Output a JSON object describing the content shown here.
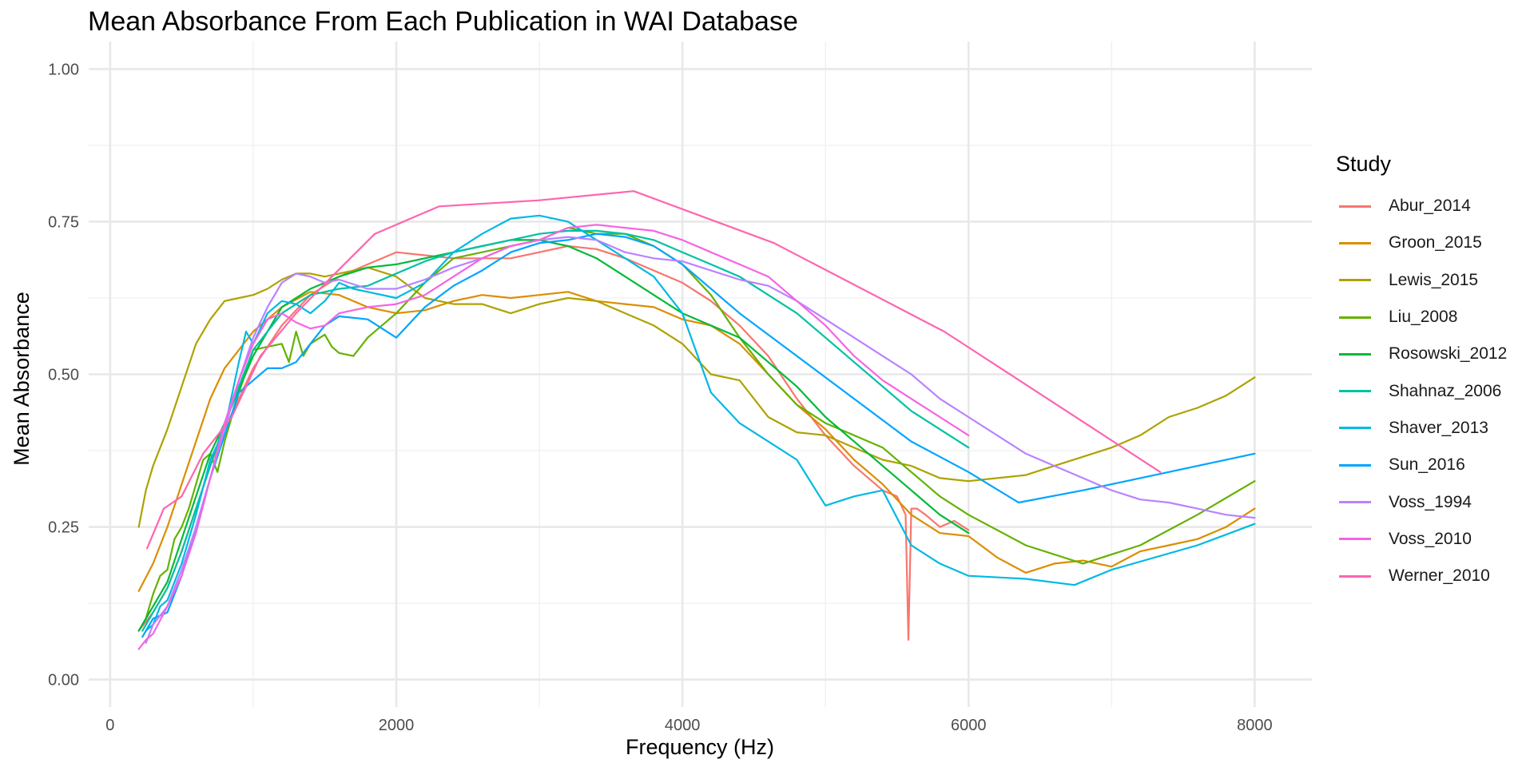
{
  "chart_data": {
    "type": "line",
    "title": "Mean Absorbance From Each Publication in WAI Database",
    "xlabel": "Frequency (Hz)",
    "ylabel": "Mean Absorbance",
    "xlim": [
      -150,
      8400
    ],
    "ylim": [
      -0.045,
      1.045
    ],
    "x_ticks": [
      0,
      2000,
      4000,
      6000,
      8000
    ],
    "x_tick_labels": [
      "0",
      "2000",
      "4000",
      "6000",
      "8000"
    ],
    "y_ticks": [
      0,
      0.25,
      0.5,
      0.75,
      1.0
    ],
    "y_tick_labels": [
      "0.00",
      "0.25",
      "0.50",
      "0.75",
      "1.00"
    ],
    "grid": true,
    "legend_title": "Study",
    "legend_position": "right",
    "series": [
      {
        "name": "Abur_2014",
        "color": "#F8766D",
        "x": [
          200,
          300,
          400,
          500,
          600,
          700,
          800,
          1000,
          1200,
          1400,
          1600,
          1800,
          2000,
          2200,
          2400,
          2600,
          2800,
          3000,
          3200,
          3400,
          3600,
          3800,
          4000,
          4200,
          4400,
          4600,
          4800,
          5000,
          5200,
          5400,
          5500,
          5560,
          5580,
          5600,
          5640,
          5700,
          5800,
          5900,
          6000
        ],
        "y": [
          0.08,
          0.11,
          0.15,
          0.21,
          0.28,
          0.35,
          0.41,
          0.51,
          0.58,
          0.63,
          0.66,
          0.68,
          0.7,
          0.695,
          0.69,
          0.69,
          0.69,
          0.7,
          0.71,
          0.705,
          0.69,
          0.67,
          0.65,
          0.62,
          0.58,
          0.53,
          0.46,
          0.4,
          0.35,
          0.31,
          0.3,
          0.27,
          0.065,
          0.28,
          0.28,
          0.27,
          0.25,
          0.26,
          0.245
        ]
      },
      {
        "name": "Groon_2015",
        "color": "#DB8E00",
        "x": [
          200,
          300,
          400,
          500,
          600,
          700,
          800,
          1000,
          1200,
          1400,
          1600,
          1800,
          2000,
          2200,
          2400,
          2600,
          2800,
          3000,
          3200,
          3400,
          3600,
          3800,
          4000,
          4200,
          4400,
          4600,
          4800,
          5000,
          5200,
          5400,
          5600,
          5800,
          6000,
          6200,
          6400,
          6600,
          6800,
          7000,
          7200,
          7400,
          7600,
          7800,
          8000
        ],
        "y": [
          0.145,
          0.19,
          0.25,
          0.32,
          0.39,
          0.46,
          0.51,
          0.57,
          0.61,
          0.635,
          0.63,
          0.61,
          0.6,
          0.605,
          0.62,
          0.63,
          0.625,
          0.63,
          0.635,
          0.62,
          0.615,
          0.61,
          0.59,
          0.58,
          0.55,
          0.5,
          0.45,
          0.41,
          0.36,
          0.32,
          0.27,
          0.24,
          0.235,
          0.2,
          0.175,
          0.19,
          0.195,
          0.185,
          0.21,
          0.22,
          0.23,
          0.25,
          0.28
        ]
      },
      {
        "name": "Lewis_2015",
        "color": "#AEA200",
        "x": [
          200,
          250,
          300,
          400,
          500,
          600,
          700,
          800,
          900,
          1000,
          1100,
          1200,
          1300,
          1400,
          1500,
          1600,
          1800,
          2000,
          2200,
          2400,
          2600,
          2800,
          3000,
          3200,
          3400,
          3600,
          3800,
          4000,
          4200,
          4400,
          4600,
          4800,
          5000,
          5200,
          5400,
          5600,
          5800,
          6000,
          6200,
          6400,
          6600,
          6800,
          7000,
          7200,
          7400,
          7600,
          7800,
          8000
        ],
        "y": [
          0.25,
          0.31,
          0.35,
          0.41,
          0.48,
          0.55,
          0.59,
          0.62,
          0.625,
          0.63,
          0.64,
          0.655,
          0.665,
          0.665,
          0.66,
          0.665,
          0.675,
          0.66,
          0.625,
          0.615,
          0.615,
          0.6,
          0.615,
          0.625,
          0.62,
          0.6,
          0.58,
          0.55,
          0.5,
          0.49,
          0.43,
          0.405,
          0.4,
          0.38,
          0.36,
          0.35,
          0.33,
          0.325,
          0.33,
          0.335,
          0.35,
          0.365,
          0.38,
          0.4,
          0.43,
          0.445,
          0.465,
          0.495
        ]
      },
      {
        "name": "Liu_2008",
        "color": "#64B200",
        "x": [
          200,
          250,
          300,
          350,
          400,
          450,
          500,
          550,
          600,
          650,
          700,
          750,
          800,
          900,
          1000,
          1100,
          1200,
          1250,
          1300,
          1350,
          1400,
          1500,
          1550,
          1600,
          1700,
          1800,
          2000,
          2200,
          2400,
          2600,
          2800,
          3000,
          3200,
          3400,
          3600,
          3800,
          4000,
          4200,
          4400,
          4600,
          4800,
          5000,
          5200,
          5400,
          5600,
          5800,
          6000,
          6400,
          6800,
          7200,
          7600,
          8000
        ],
        "y": [
          0.08,
          0.1,
          0.14,
          0.17,
          0.18,
          0.23,
          0.25,
          0.28,
          0.32,
          0.36,
          0.37,
          0.34,
          0.39,
          0.47,
          0.54,
          0.545,
          0.55,
          0.52,
          0.57,
          0.53,
          0.55,
          0.565,
          0.545,
          0.535,
          0.53,
          0.56,
          0.6,
          0.65,
          0.69,
          0.7,
          0.71,
          0.72,
          0.74,
          0.73,
          0.73,
          0.71,
          0.68,
          0.63,
          0.56,
          0.5,
          0.45,
          0.42,
          0.4,
          0.38,
          0.34,
          0.3,
          0.27,
          0.22,
          0.19,
          0.22,
          0.27,
          0.325
        ]
      },
      {
        "name": "Rosowski_2012",
        "color": "#00BA38",
        "x": [
          200,
          300,
          400,
          500,
          600,
          700,
          800,
          1000,
          1200,
          1400,
          1600,
          1800,
          2000,
          2200,
          2400,
          2600,
          2800,
          3000,
          3200,
          3400,
          3600,
          3800,
          4000,
          4200,
          4400,
          4600,
          4800,
          5000,
          5200,
          5400,
          5600,
          5800,
          6000
        ],
        "y": [
          0.08,
          0.12,
          0.16,
          0.23,
          0.3,
          0.37,
          0.42,
          0.53,
          0.61,
          0.64,
          0.66,
          0.675,
          0.68,
          0.69,
          0.7,
          0.71,
          0.72,
          0.72,
          0.71,
          0.69,
          0.66,
          0.63,
          0.6,
          0.58,
          0.56,
          0.52,
          0.48,
          0.43,
          0.39,
          0.35,
          0.31,
          0.27,
          0.24
        ]
      },
      {
        "name": "Shahnaz_2006",
        "color": "#00C1A3",
        "x": [
          226,
          300,
          400,
          500,
          600,
          700,
          800,
          1000,
          1200,
          1400,
          1600,
          1800,
          2000,
          2200,
          2400,
          2600,
          2800,
          3000,
          3200,
          3400,
          3600,
          3800,
          4000,
          4200,
          4400,
          4600,
          4800,
          5000,
          5200,
          5400,
          5600,
          5800,
          6000
        ],
        "y": [
          0.08,
          0.11,
          0.15,
          0.21,
          0.28,
          0.35,
          0.42,
          0.54,
          0.6,
          0.63,
          0.64,
          0.645,
          0.665,
          0.685,
          0.7,
          0.71,
          0.72,
          0.73,
          0.735,
          0.735,
          0.73,
          0.72,
          0.7,
          0.68,
          0.66,
          0.63,
          0.6,
          0.56,
          0.52,
          0.48,
          0.44,
          0.41,
          0.38
        ]
      },
      {
        "name": "Shaver_2013",
        "color": "#00B9E3",
        "x": [
          250,
          300,
          350,
          400,
          500,
          600,
          700,
          800,
          900,
          950,
          1000,
          1100,
          1200,
          1300,
          1400,
          1500,
          1600,
          1700,
          1800,
          2000,
          2200,
          2400,
          2600,
          2800,
          3000,
          3200,
          3400,
          3600,
          3800,
          4000,
          4200,
          4400,
          4600,
          4800,
          5000,
          5200,
          5400,
          5600,
          5800,
          6000,
          6400,
          6740,
          7000,
          7600,
          8000
        ],
        "y": [
          0.08,
          0.09,
          0.12,
          0.13,
          0.19,
          0.27,
          0.36,
          0.41,
          0.52,
          0.57,
          0.55,
          0.6,
          0.62,
          0.615,
          0.6,
          0.62,
          0.65,
          0.64,
          0.635,
          0.625,
          0.65,
          0.7,
          0.73,
          0.755,
          0.76,
          0.75,
          0.72,
          0.69,
          0.66,
          0.6,
          0.47,
          0.42,
          0.39,
          0.36,
          0.285,
          0.3,
          0.31,
          0.22,
          0.19,
          0.17,
          0.165,
          0.155,
          0.18,
          0.22,
          0.255
        ]
      },
      {
        "name": "Sun_2016",
        "color": "#00A5FF",
        "x": [
          226,
          300,
          400,
          500,
          600,
          700,
          800,
          900,
          1000,
          1100,
          1200,
          1300,
          1400,
          1500,
          1600,
          1800,
          2000,
          2200,
          2400,
          2600,
          2800,
          3000,
          3200,
          3400,
          3600,
          3800,
          4000,
          4400,
          4800,
          5200,
          5600,
          6000,
          6350,
          6800,
          7400,
          8000
        ],
        "y": [
          0.07,
          0.1,
          0.11,
          0.17,
          0.25,
          0.33,
          0.4,
          0.47,
          0.49,
          0.51,
          0.51,
          0.52,
          0.55,
          0.58,
          0.595,
          0.59,
          0.56,
          0.61,
          0.645,
          0.67,
          0.7,
          0.715,
          0.72,
          0.73,
          0.725,
          0.71,
          0.68,
          0.6,
          0.53,
          0.46,
          0.39,
          0.34,
          0.29,
          0.31,
          0.34,
          0.37
        ]
      },
      {
        "name": "Voss_1994",
        "color": "#B983FF",
        "x": [
          250,
          300,
          400,
          500,
          600,
          700,
          800,
          900,
          1000,
          1100,
          1200,
          1300,
          1400,
          1500,
          1600,
          1800,
          2000,
          2200,
          2400,
          2600,
          2800,
          3000,
          3200,
          3400,
          3600,
          3800,
          4000,
          4200,
          4400,
          4600,
          4800,
          5000,
          5200,
          5400,
          5600,
          5800,
          6000,
          6200,
          6400,
          6600,
          6800,
          7000,
          7200,
          7400,
          7600,
          7800,
          8000
        ],
        "y": [
          0.06,
          0.09,
          0.12,
          0.18,
          0.25,
          0.33,
          0.41,
          0.49,
          0.56,
          0.61,
          0.65,
          0.665,
          0.66,
          0.65,
          0.655,
          0.64,
          0.64,
          0.655,
          0.675,
          0.69,
          0.71,
          0.72,
          0.725,
          0.72,
          0.7,
          0.69,
          0.685,
          0.67,
          0.655,
          0.645,
          0.62,
          0.59,
          0.56,
          0.53,
          0.5,
          0.46,
          0.43,
          0.4,
          0.37,
          0.35,
          0.33,
          0.31,
          0.295,
          0.29,
          0.28,
          0.27,
          0.265
        ]
      },
      {
        "name": "Voss_2010",
        "color": "#F564E3",
        "x": [
          200,
          250,
          300,
          400,
          500,
          600,
          700,
          800,
          900,
          1000,
          1100,
          1200,
          1300,
          1400,
          1500,
          1600,
          1800,
          2000,
          2200,
          2400,
          2600,
          2800,
          3000,
          3200,
          3400,
          3600,
          3800,
          4000,
          4200,
          4400,
          4600,
          4800,
          5000,
          5200,
          5400,
          5600,
          5800,
          6000
        ],
        "y": [
          0.05,
          0.065,
          0.075,
          0.12,
          0.17,
          0.24,
          0.33,
          0.42,
          0.49,
          0.55,
          0.59,
          0.6,
          0.585,
          0.575,
          0.58,
          0.6,
          0.61,
          0.615,
          0.63,
          0.66,
          0.69,
          0.71,
          0.72,
          0.74,
          0.745,
          0.74,
          0.735,
          0.72,
          0.7,
          0.68,
          0.66,
          0.62,
          0.58,
          0.53,
          0.49,
          0.46,
          0.43,
          0.4
        ]
      },
      {
        "name": "Werner_2010",
        "color": "#FF64B0",
        "x": [
          258,
          375,
          500,
          650,
          850,
          1050,
          1300,
          1550,
          1850,
          2300,
          3000,
          3660,
          4640,
          5830,
          7340
        ],
        "y": [
          0.215,
          0.28,
          0.3,
          0.37,
          0.43,
          0.53,
          0.6,
          0.66,
          0.73,
          0.775,
          0.785,
          0.8,
          0.715,
          0.57,
          0.34
        ]
      }
    ]
  }
}
